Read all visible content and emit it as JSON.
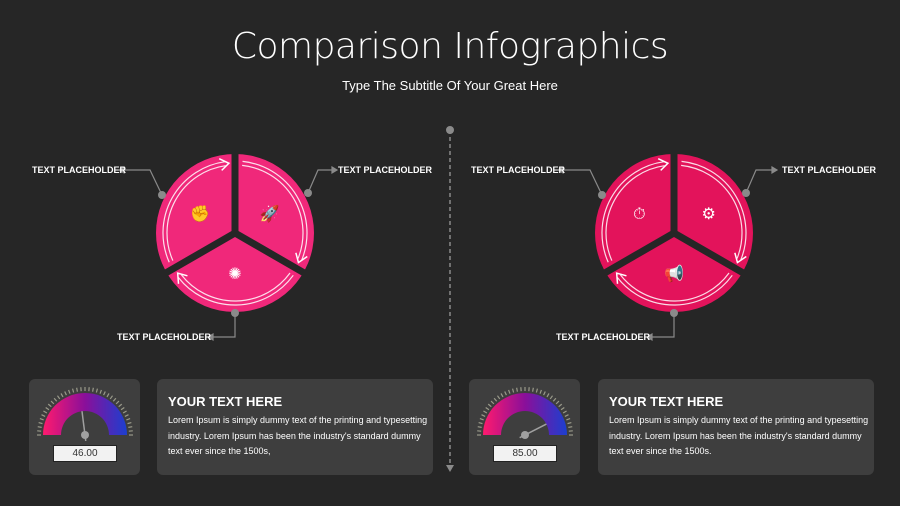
{
  "header": {
    "title": "Comparison Infographics",
    "subtitle": "Type The Subtitle Of Your Great Here"
  },
  "colors": {
    "background": "#262626",
    "card": "#3e3e3e",
    "left_pie": "#f0287a",
    "right_pie": "#e3135b",
    "gauge_start": "#ff1a6e",
    "gauge_mid": "#8a0f9a",
    "gauge_end": "#1c3fd0"
  },
  "left": {
    "labels": [
      "TEXT PLACEHOLDER",
      "TEXT PLACEHOLDER",
      "TEXT PLACEHOLDER"
    ],
    "icons": [
      "fist-icon",
      "rocket-icon",
      "brain-icon"
    ],
    "gauge": {
      "value": 46,
      "display": "46.00"
    },
    "card": {
      "heading": "YOUR TEXT HERE",
      "body": "Lorem Ipsum is simply dummy text of the printing and typesetting industry. Lorem Ipsum has been the industry's standard dummy text ever since the 1500s,"
    }
  },
  "right": {
    "labels": [
      "TEXT PLACEHOLDER",
      "TEXT PLACEHOLDER",
      "TEXT PLACEHOLDER"
    ],
    "icons": [
      "stopwatch-icon",
      "gear-icon",
      "megaphone-icon"
    ],
    "gauge": {
      "value": 85,
      "display": "85.00"
    },
    "card": {
      "heading": "YOUR TEXT HERE",
      "body": "Lorem Ipsum is simply dummy text of the printing and typesetting industry. Lorem Ipsum has been the industry's standard dummy text ever since the 1500s."
    }
  }
}
